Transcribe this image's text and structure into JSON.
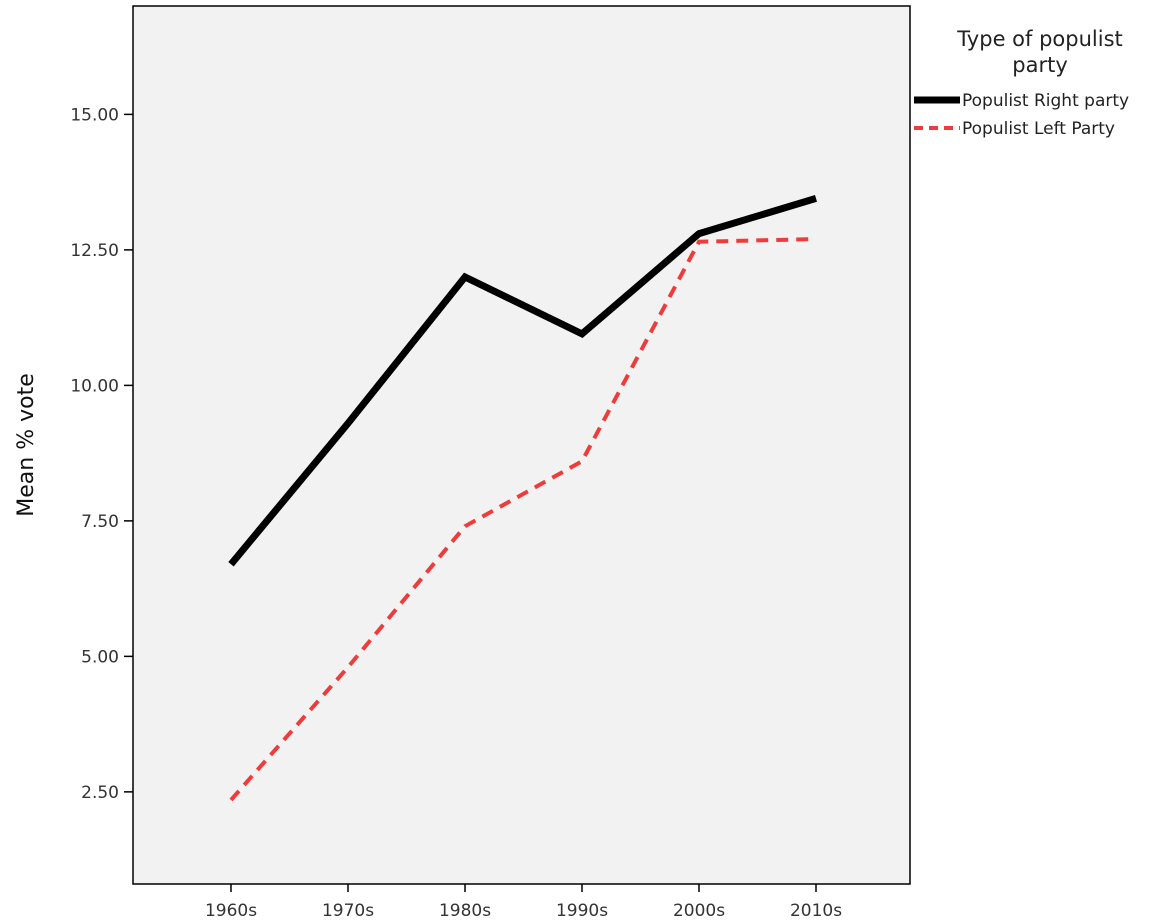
{
  "chart_data": {
    "type": "line",
    "categories": [
      "1960s",
      "1970s",
      "1980s",
      "1990s",
      "2000s",
      "2010s"
    ],
    "ylabel": "Mean % vote",
    "xlabel": "",
    "ylim": [
      0.8,
      17.0
    ],
    "yticks": [
      "2.50",
      "5.00",
      "7.50",
      "10.00",
      "12.50",
      "15.00"
    ],
    "ytick_values": [
      2.5,
      5.0,
      7.5,
      10.0,
      12.5,
      15.0
    ],
    "grid": false,
    "legend": {
      "title_line1": "Type of populist",
      "title_line2": "party",
      "placement": "top-right outside"
    },
    "series": [
      {
        "name": "Populist Right party",
        "values": [
          6.7,
          9.3,
          12.0,
          10.95,
          12.8,
          13.45
        ],
        "color": "#000000",
        "style": "solid"
      },
      {
        "name": "Populist Left Party",
        "values": [
          2.35,
          4.8,
          7.4,
          8.6,
          12.65,
          12.7
        ],
        "color": "#ee3b3b",
        "style": "dashed"
      }
    ],
    "colors": {
      "plot_background": "#f2f2f2",
      "axis": "#000000"
    }
  }
}
